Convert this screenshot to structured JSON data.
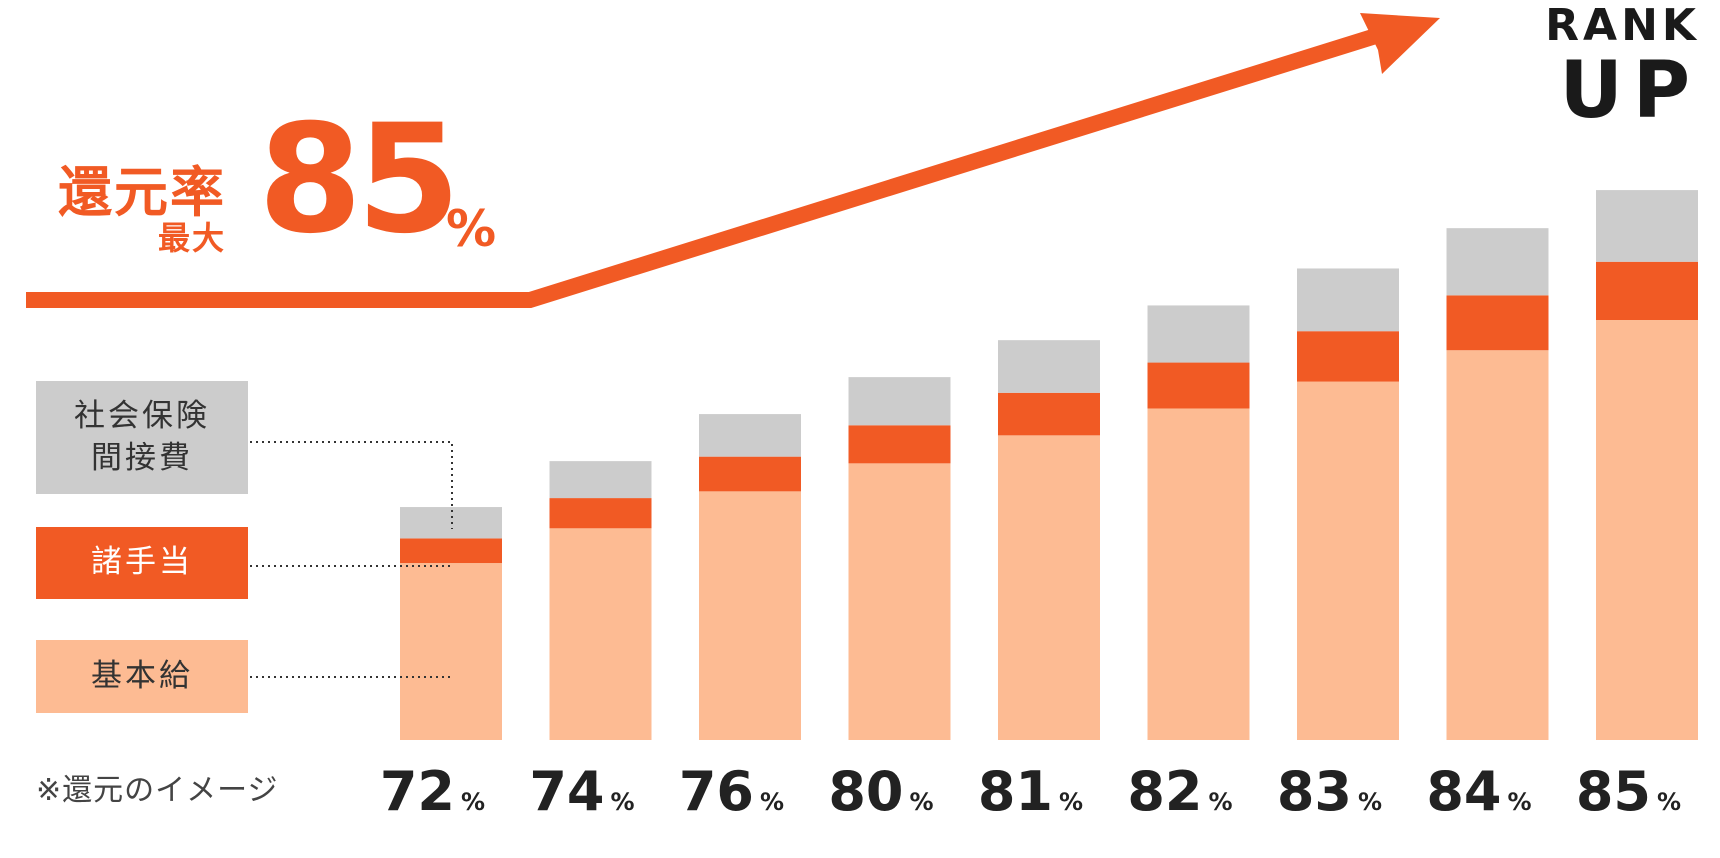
{
  "headline": {
    "label_main": "還元率",
    "label_sub": "最大",
    "value": "85",
    "unit": "%"
  },
  "rank_up": {
    "line1": "RANK",
    "line2": "UP"
  },
  "legend": {
    "social": "社会保険\n間接費",
    "allowance": "諸手当",
    "base": "基本給"
  },
  "note": "※還元のイメージ",
  "colors": {
    "accent": "#f15a24",
    "base": "#fdbb93",
    "allowance": "#f15a24",
    "social": "#cccccc",
    "text": "#222222"
  },
  "chart_data": {
    "type": "bar",
    "stacked": true,
    "categories": [
      "72%",
      "74%",
      "76%",
      "80%",
      "81%",
      "82%",
      "83%",
      "84%",
      "85%"
    ],
    "series": [
      {
        "name": "基本給",
        "values": [
          158,
          189,
          222,
          247,
          272,
          296,
          320,
          348,
          375
        ]
      },
      {
        "name": "諸手当",
        "values": [
          22,
          27,
          31,
          34,
          38,
          41,
          45,
          49,
          52
        ]
      },
      {
        "name": "社会保険\n間接費",
        "values": [
          28,
          33,
          38,
          43,
          47,
          51,
          56,
          60,
          64
        ]
      }
    ],
    "category_labels": [
      {
        "value": "72",
        "unit": "%"
      },
      {
        "value": "74",
        "unit": "%"
      },
      {
        "value": "76",
        "unit": "%"
      },
      {
        "value": "80",
        "unit": "%"
      },
      {
        "value": "81",
        "unit": "%"
      },
      {
        "value": "82",
        "unit": "%"
      },
      {
        "value": "83",
        "unit": "%"
      },
      {
        "value": "84",
        "unit": "%"
      },
      {
        "value": "85",
        "unit": "%"
      }
    ],
    "ylim": [
      0,
      500
    ],
    "grid": false,
    "legend_placement": "left"
  }
}
